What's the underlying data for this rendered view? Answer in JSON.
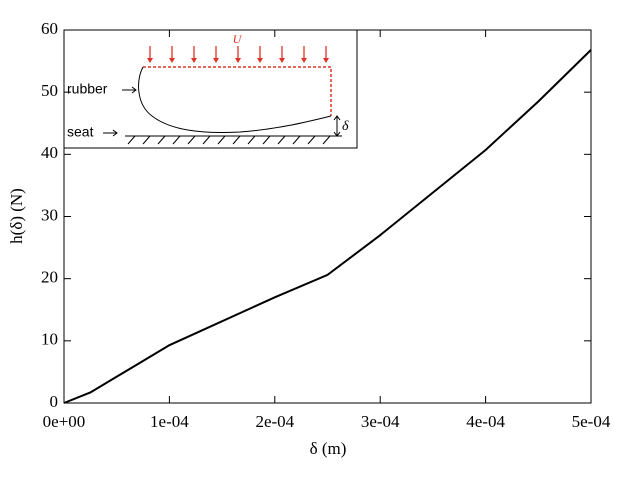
{
  "chart_data": {
    "type": "line",
    "x_label": "δ (m)",
    "y_label": "h(δ) (N)",
    "x": [
      0,
      2.5e-05,
      0.0001,
      0.0002,
      0.00025,
      0.0003,
      0.0004,
      0.00045,
      0.0005
    ],
    "series": [
      {
        "color": "#000000",
        "values": [
          0,
          1.7,
          9.3,
          17,
          20.6,
          27,
          40.7,
          48.5,
          56.8
        ]
      }
    ],
    "xlim": [
      0,
      0.0005
    ],
    "ylim": [
      0,
      60
    ],
    "xticks": [
      {
        "value": 0,
        "label": "0e+00"
      },
      {
        "value": 0.0001,
        "label": "1e-04"
      },
      {
        "value": 0.0002,
        "label": "2e-04"
      },
      {
        "value": 0.0003,
        "label": "3e-04"
      },
      {
        "value": 0.0004,
        "label": "4e-04"
      },
      {
        "value": 0.0005,
        "label": "5e-04"
      }
    ],
    "yticks": [
      0,
      10,
      20,
      30,
      40,
      50,
      60
    ],
    "grid": false,
    "inset_labels": {
      "load": "U",
      "rubber": "rubber",
      "seat": "seat",
      "gap": "δ"
    }
  }
}
